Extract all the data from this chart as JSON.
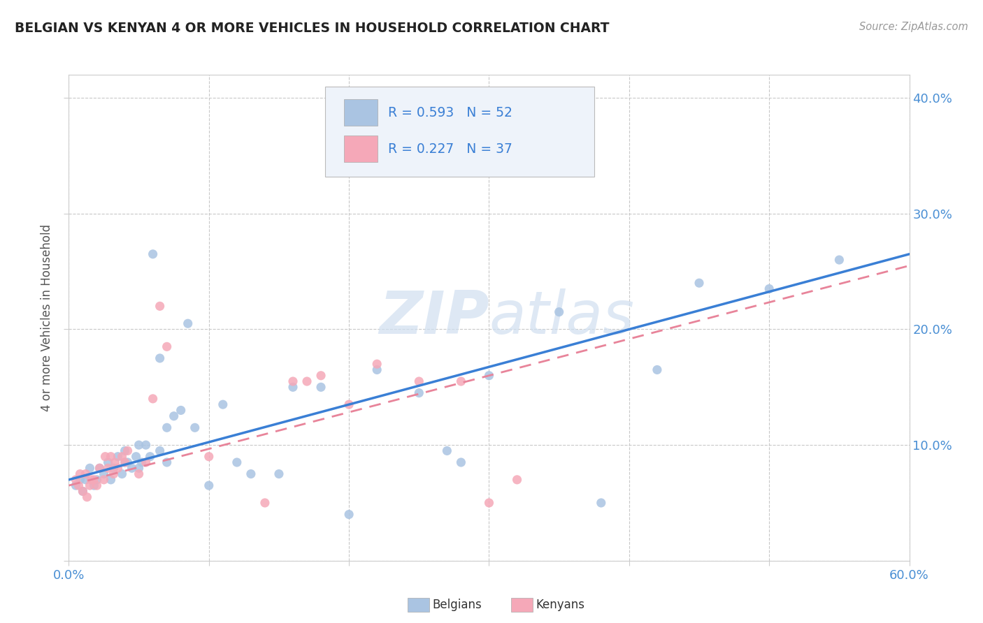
{
  "title": "BELGIAN VS KENYAN 4 OR MORE VEHICLES IN HOUSEHOLD CORRELATION CHART",
  "source": "Source: ZipAtlas.com",
  "ylabel": "4 or more Vehicles in Household",
  "xlim": [
    0.0,
    0.6
  ],
  "ylim": [
    0.0,
    0.42
  ],
  "xticks": [
    0.0,
    0.1,
    0.2,
    0.3,
    0.4,
    0.5,
    0.6
  ],
  "yticks": [
    0.0,
    0.1,
    0.2,
    0.3,
    0.4
  ],
  "xticklabels": [
    "0.0%",
    "",
    "",
    "",
    "",
    "",
    "60.0%"
  ],
  "yticklabels": [
    "",
    "10.0%",
    "20.0%",
    "30.0%",
    "40.0%"
  ],
  "belgian_color": "#aac4e2",
  "kenyan_color": "#f5a8b8",
  "belgian_line_color": "#3a7fd5",
  "kenyan_line_color": "#e8849a",
  "R_belgian": 0.593,
  "N_belgian": 52,
  "R_kenyan": 0.227,
  "N_kenyan": 37,
  "belgian_line_x0": 0.0,
  "belgian_line_y0": 0.07,
  "belgian_line_x1": 0.6,
  "belgian_line_y1": 0.265,
  "kenyan_line_x0": 0.0,
  "kenyan_line_y0": 0.065,
  "kenyan_line_x1": 0.6,
  "kenyan_line_y1": 0.255,
  "belgian_x": [
    0.005,
    0.008,
    0.01,
    0.012,
    0.015,
    0.018,
    0.02,
    0.022,
    0.025,
    0.028,
    0.03,
    0.032,
    0.035,
    0.038,
    0.04,
    0.04,
    0.042,
    0.045,
    0.048,
    0.05,
    0.05,
    0.052,
    0.055,
    0.058,
    0.06,
    0.065,
    0.065,
    0.07,
    0.07,
    0.075,
    0.08,
    0.085,
    0.09,
    0.1,
    0.11,
    0.12,
    0.13,
    0.15,
    0.16,
    0.18,
    0.2,
    0.22,
    0.25,
    0.27,
    0.28,
    0.3,
    0.35,
    0.38,
    0.42,
    0.45,
    0.5,
    0.55
  ],
  "belgian_y": [
    0.065,
    0.07,
    0.06,
    0.07,
    0.08,
    0.065,
    0.07,
    0.08,
    0.075,
    0.085,
    0.07,
    0.08,
    0.09,
    0.075,
    0.085,
    0.095,
    0.085,
    0.08,
    0.09,
    0.08,
    0.1,
    0.085,
    0.1,
    0.09,
    0.265,
    0.095,
    0.175,
    0.085,
    0.115,
    0.125,
    0.13,
    0.205,
    0.115,
    0.065,
    0.135,
    0.085,
    0.075,
    0.075,
    0.15,
    0.15,
    0.04,
    0.165,
    0.145,
    0.095,
    0.085,
    0.16,
    0.215,
    0.05,
    0.165,
    0.24,
    0.235,
    0.26
  ],
  "kenyan_x": [
    0.005,
    0.007,
    0.008,
    0.01,
    0.012,
    0.013,
    0.015,
    0.016,
    0.018,
    0.02,
    0.022,
    0.025,
    0.026,
    0.028,
    0.03,
    0.032,
    0.033,
    0.035,
    0.038,
    0.04,
    0.042,
    0.05,
    0.055,
    0.06,
    0.065,
    0.07,
    0.1,
    0.14,
    0.16,
    0.17,
    0.18,
    0.2,
    0.22,
    0.25,
    0.28,
    0.3,
    0.32
  ],
  "kenyan_y": [
    0.07,
    0.065,
    0.075,
    0.06,
    0.075,
    0.055,
    0.065,
    0.07,
    0.07,
    0.065,
    0.08,
    0.07,
    0.09,
    0.08,
    0.09,
    0.075,
    0.085,
    0.08,
    0.09,
    0.085,
    0.095,
    0.075,
    0.085,
    0.14,
    0.22,
    0.185,
    0.09,
    0.05,
    0.155,
    0.155,
    0.16,
    0.135,
    0.17,
    0.155,
    0.155,
    0.05,
    0.07
  ],
  "title_color": "#222222",
  "axis_label_color": "#555555",
  "tick_color": "#4a8fd4",
  "grid_color": "#c8c8c8",
  "legend_text_color": "#3a7fd5",
  "legend_n_color": "#3a7fd5",
  "watermark_color": "#d0dff0",
  "background_color": "#ffffff"
}
